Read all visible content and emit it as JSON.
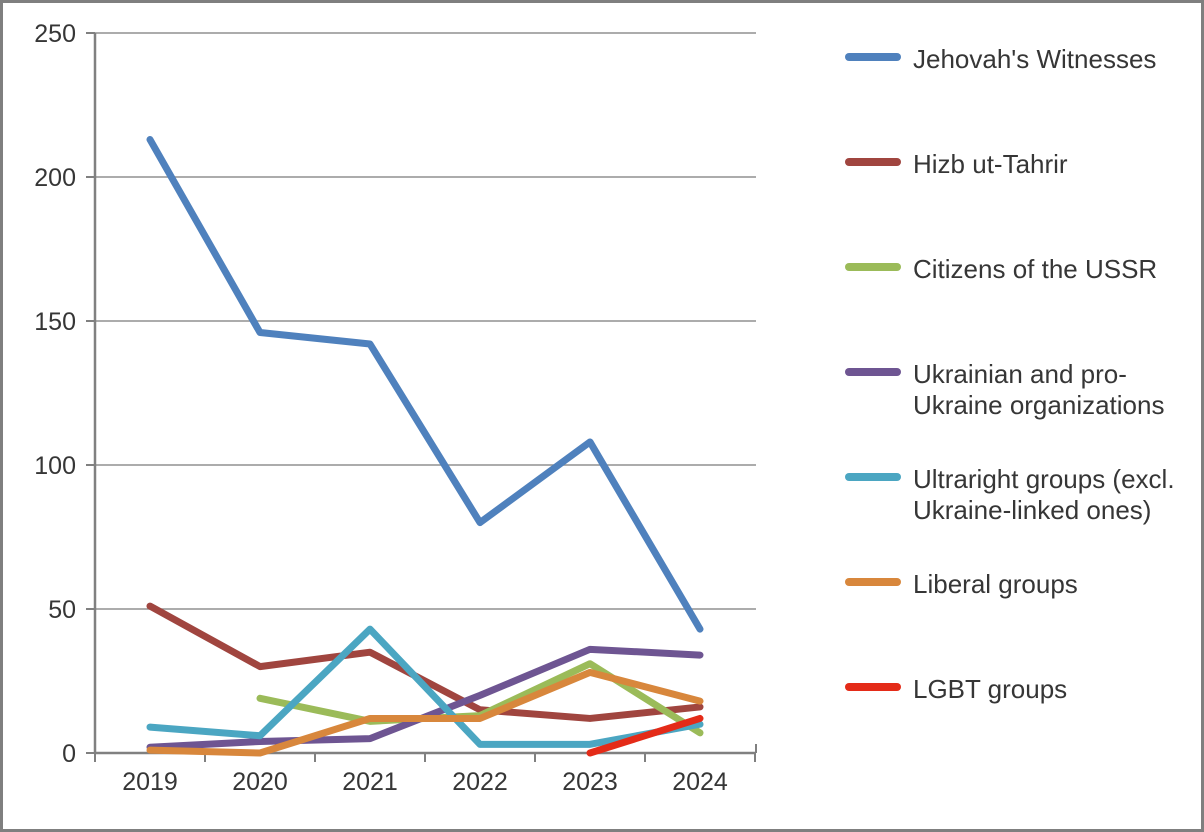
{
  "chart_data": {
    "type": "line",
    "x": [
      2019,
      2020,
      2021,
      2022,
      2023,
      2024
    ],
    "series": [
      {
        "name": "Jehovah's Witnesses",
        "legend_lines": [
          "Jehovah's Witnesses"
        ],
        "color": "#4F81BD",
        "values": [
          213,
          146,
          142,
          80,
          108,
          43
        ]
      },
      {
        "name": "Hizb ut-Tahrir",
        "legend_lines": [
          "Hizb ut-Tahrir"
        ],
        "color": "#A0453F",
        "values": [
          51,
          30,
          35,
          15,
          12,
          16
        ]
      },
      {
        "name": "Citizens of the USSR",
        "legend_lines": [
          "Citizens of the USSR"
        ],
        "color": "#9BBB59",
        "values": [
          null,
          19,
          11,
          13,
          31,
          7
        ]
      },
      {
        "name": "Ukrainian and pro-Ukraine organizations",
        "legend_lines": [
          "Ukrainian and pro-",
          "Ukraine organizations"
        ],
        "color": "#6E5592",
        "values": [
          2,
          4,
          5,
          20,
          36,
          34
        ]
      },
      {
        "name": "Ultraright groups (excl. Ukraine-linked ones)",
        "legend_lines": [
          "Ultraright groups (excl.",
          "Ukraine-linked ones)"
        ],
        "color": "#4BA6C2",
        "values": [
          9,
          6,
          43,
          3,
          3,
          10
        ]
      },
      {
        "name": "Liberal groups",
        "legend_lines": [
          "Liberal groups"
        ],
        "color": "#D8873C",
        "values": [
          1,
          0,
          12,
          12,
          28,
          18
        ]
      },
      {
        "name": "LGBT groups",
        "legend_lines": [
          "LGBT groups"
        ],
        "color": "#E42B18",
        "values": [
          null,
          null,
          null,
          null,
          0,
          12
        ]
      }
    ],
    "title": "",
    "xlabel": "",
    "ylabel": "",
    "ylim": [
      0,
      250
    ],
    "y_ticks": [
      0,
      50,
      100,
      150,
      200,
      250
    ],
    "grid": true,
    "legend_position": "right"
  },
  "style_colors": {
    "axis": "#808080",
    "gridline": "#909090",
    "text": "#363636",
    "frame_border": "#7F7F7F",
    "background": "#FFFFFF"
  }
}
